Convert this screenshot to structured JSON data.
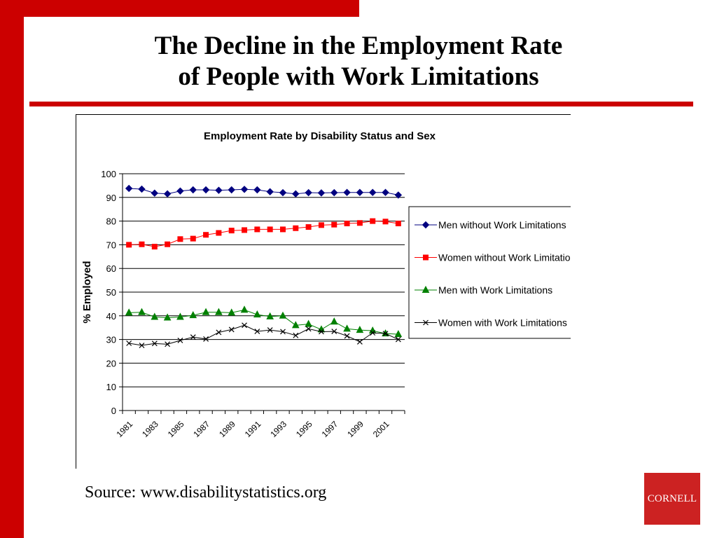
{
  "slide": {
    "title_line1": "The Decline in the Employment Rate",
    "title_line2": "of People with Work Limitations",
    "source": "Source: www.disabilitystatistics.org",
    "logo_text": "CORNELL"
  },
  "colors": {
    "accent": "#cc0000",
    "series": [
      "#000080",
      "#ff0000",
      "#008000",
      "#000000"
    ]
  },
  "chart_data": {
    "type": "line",
    "title": "Employment Rate by Disability Status and Sex",
    "xlabel": "",
    "ylabel": "% Employed",
    "ylim": [
      0,
      100
    ],
    "yticks": [
      0,
      10,
      20,
      30,
      40,
      50,
      60,
      70,
      80,
      90,
      100
    ],
    "x": [
      1981,
      1982,
      1983,
      1984,
      1985,
      1986,
      1987,
      1988,
      1989,
      1990,
      1991,
      1992,
      1993,
      1994,
      1995,
      1996,
      1997,
      1998,
      1999,
      2000,
      2001,
      2002
    ],
    "xtick_labels": [
      "1981",
      "1983",
      "1985",
      "1987",
      "1989",
      "1991",
      "1993",
      "1995",
      "1997",
      "1999",
      "2001"
    ],
    "grid": "horizontal",
    "legend_position": "right",
    "series": [
      {
        "name": "Men without Work Limitations",
        "marker": "diamond",
        "color": "#000080",
        "values": [
          93.8,
          93.5,
          91.8,
          91.5,
          92.7,
          93.2,
          93.2,
          93.0,
          93.2,
          93.4,
          93.2,
          92.4,
          92.0,
          91.5,
          92.0,
          91.9,
          92.0,
          92.1,
          92.1,
          92.1,
          92.1,
          91.0
        ]
      },
      {
        "name": "Women without Work Limitations",
        "marker": "square",
        "color": "#ff0000",
        "values": [
          70.0,
          70.2,
          69.2,
          70.2,
          72.4,
          72.6,
          74.2,
          75.0,
          76.0,
          76.2,
          76.5,
          76.5,
          76.5,
          77.0,
          77.5,
          78.3,
          78.5,
          79.0,
          79.2,
          80.0,
          79.8,
          79.0
        ]
      },
      {
        "name": "Men with Work Limitations",
        "marker": "triangle",
        "color": "#008000",
        "values": [
          41.3,
          41.5,
          39.5,
          39.2,
          39.5,
          40.2,
          41.5,
          41.5,
          41.3,
          42.5,
          40.5,
          39.7,
          40.0,
          36.0,
          36.5,
          34.2,
          37.5,
          34.5,
          34.0,
          33.7,
          32.5,
          32.2
        ]
      },
      {
        "name": "Women with Work Limitations",
        "marker": "x",
        "color": "#000000",
        "values": [
          28.4,
          27.5,
          28.3,
          28.0,
          29.6,
          31.0,
          30.2,
          33.0,
          34.2,
          36.0,
          33.4,
          34.0,
          33.3,
          31.7,
          34.5,
          33.3,
          33.4,
          31.5,
          29.0,
          32.8,
          32.5,
          30.0
        ]
      }
    ]
  }
}
